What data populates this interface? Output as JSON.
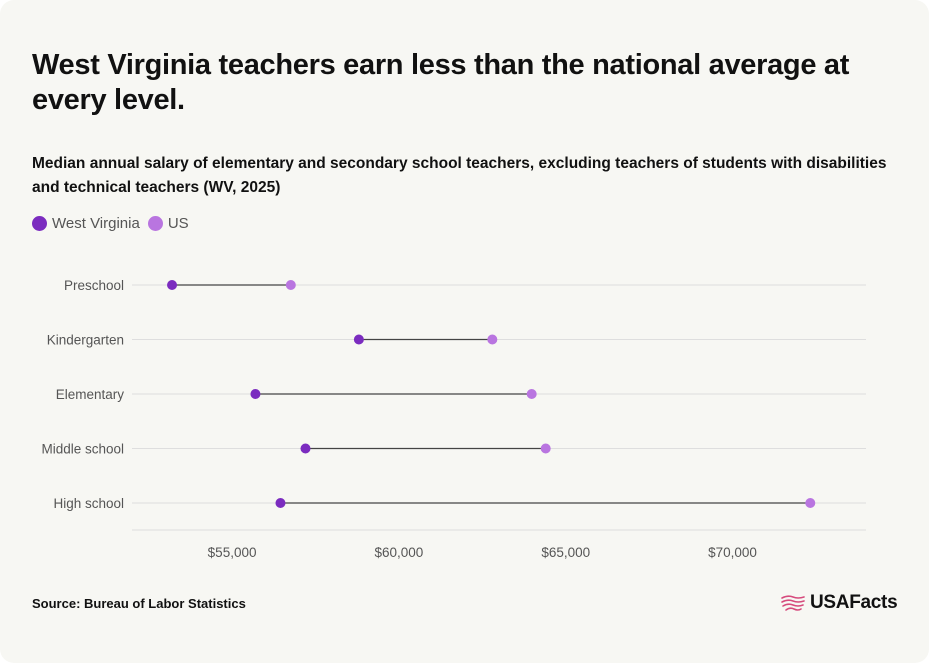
{
  "title": "West Virginia teachers earn less than the national average at every level.",
  "subtitle": "Median annual salary of elementary and secondary school teachers, excluding teachers of students with disabilities and technical teachers (WV, 2025)",
  "legend": {
    "wv_label": "West Virginia",
    "us_label": "US"
  },
  "colors": {
    "wv": "#7b2cbf",
    "us": "#b975e0",
    "connector": "#444444",
    "gridline": "#dedede",
    "background": "#f7f7f3",
    "brand_flag": "#d64b7d"
  },
  "source": "Source: Bureau of Labor Statistics",
  "brand": {
    "name": "USAFacts",
    "icon": "us-flag-map-icon"
  },
  "chart_data": {
    "type": "dumbbell",
    "categories": [
      "Preschool",
      "Kindergarten",
      "Elementary",
      "Middle school",
      "High school"
    ],
    "series": [
      {
        "name": "West Virginia",
        "values": [
          53200,
          58800,
          55700,
          57200,
          56450
        ]
      },
      {
        "name": "US",
        "values": [
          56760,
          62800,
          63980,
          64400,
          72330
        ]
      }
    ],
    "xlim": [
      52000,
      74000
    ],
    "xticks": [
      55000,
      60000,
      65000,
      70000
    ],
    "xtick_labels": [
      "$55,000",
      "$60,000",
      "$65,000",
      "$70,000"
    ],
    "grid": true,
    "legend_position": "top-left"
  }
}
